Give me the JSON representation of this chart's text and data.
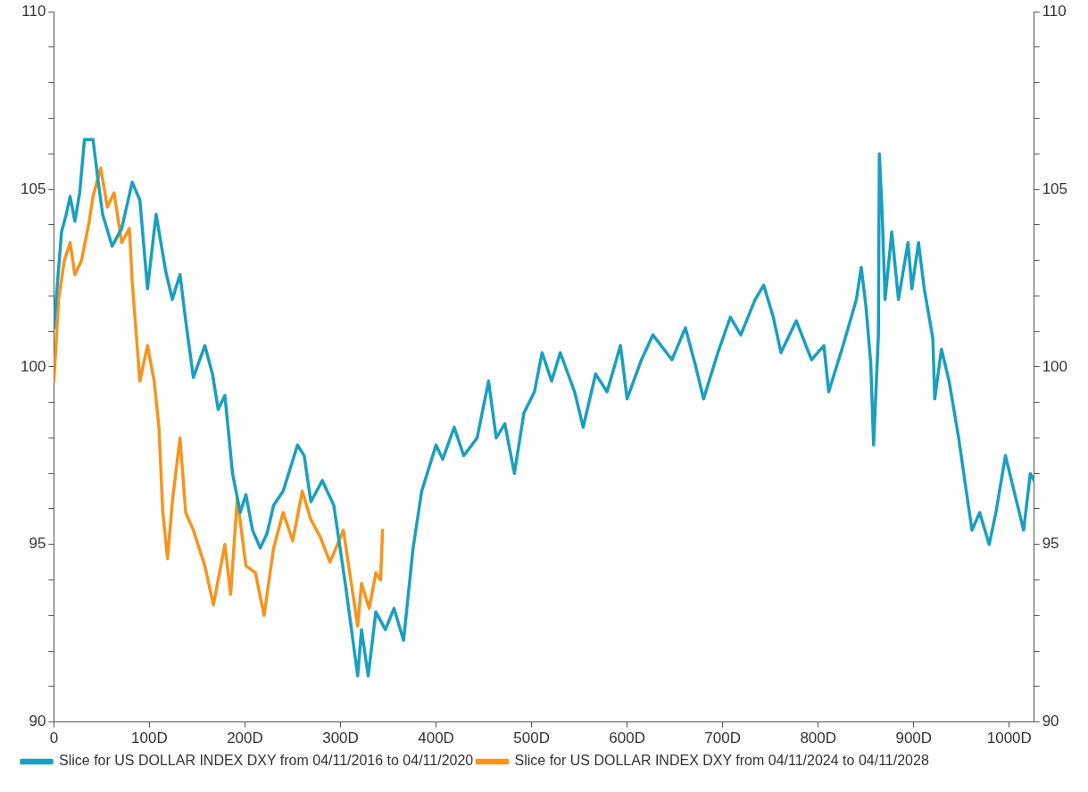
{
  "chart_data": {
    "type": "line",
    "xlim": [
      0,
      1026
    ],
    "xticks": [
      0,
      {
        "value": 100,
        "label": "100D"
      },
      {
        "value": 200,
        "label": "200D"
      },
      {
        "value": 300,
        "label": "300D"
      },
      {
        "value": 400,
        "label": "400D"
      },
      {
        "value": 500,
        "label": "500D"
      },
      {
        "value": 600,
        "label": "600D"
      },
      {
        "value": 700,
        "label": "700D"
      },
      {
        "value": 800,
        "label": "800D"
      },
      {
        "value": 900,
        "label": "900D"
      },
      {
        "value": 1000,
        "label": "1000D"
      }
    ],
    "ylim": [
      90,
      110
    ],
    "yticks": [
      90,
      {
        "value": 91,
        "label": null
      },
      {
        "value": 92,
        "label": null
      },
      {
        "value": 93,
        "label": null
      },
      {
        "value": 94,
        "label": null
      },
      95,
      {
        "value": 96,
        "label": null
      },
      {
        "value": 97,
        "label": null
      },
      {
        "value": 98,
        "label": null
      },
      {
        "value": 99,
        "label": null
      },
      100,
      {
        "value": 101,
        "label": null
      },
      {
        "value": 102,
        "label": null
      },
      {
        "value": 103,
        "label": null
      },
      {
        "value": 104,
        "label": null
      },
      105,
      {
        "value": 106,
        "label": null
      },
      {
        "value": 107,
        "label": null
      },
      {
        "value": 108,
        "label": null
      },
      {
        "value": 109,
        "label": null
      },
      110
    ],
    "y2lim": [
      90,
      110
    ],
    "y2ticks": [
      90,
      {
        "value": 91,
        "label": null
      },
      {
        "value": 92,
        "label": null
      },
      {
        "value": 93,
        "label": null
      },
      {
        "value": 94,
        "label": null
      },
      95,
      {
        "value": 96,
        "label": null
      },
      {
        "value": 97,
        "label": null
      },
      {
        "value": 98,
        "label": null
      },
      {
        "value": 99,
        "label": null
      },
      100,
      {
        "value": 101,
        "label": null
      },
      {
        "value": 102,
        "label": null
      },
      {
        "value": 103,
        "label": null
      },
      {
        "value": 104,
        "label": null
      },
      105,
      {
        "value": 106,
        "label": null
      },
      {
        "value": 107,
        "label": null
      },
      {
        "value": 108,
        "label": null
      },
      {
        "value": 109,
        "label": null
      },
      110
    ],
    "grid": false,
    "legend": "bottom left",
    "marker": "none",
    "line_style": "solid",
    "series": [
      {
        "name": "Slice for US DOLLAR INDEX DXY from 04/11/2016 to 04/11/2020",
        "color": "#1a9fc0",
        "x": [
          0,
          8,
          13,
          17,
          22,
          27,
          32,
          41,
          46,
          51,
          61,
          71,
          82,
          90,
          98,
          107,
          117,
          124,
          132,
          138,
          146,
          158,
          166,
          172,
          179,
          187,
          195,
          201,
          208,
          216,
          223,
          230,
          240,
          255,
          262,
          269,
          281,
          293,
          305,
          313,
          318,
          322,
          329,
          337,
          347,
          356,
          366,
          376,
          385,
          400,
          407,
          419,
          429,
          443,
          455,
          463,
          472,
          482,
          492,
          503,
          511,
          521,
          530,
          545,
          554,
          567,
          579,
          593,
          600,
          615,
          627,
          647,
          661,
          671,
          680,
          695,
          708,
          719,
          734,
          743,
          753,
          761,
          777,
          793,
          806,
          811,
          826,
          840,
          845,
          850,
          855,
          858,
          863,
          864,
          867,
          870,
          877,
          884,
          894,
          898,
          905,
          911,
          920,
          922,
          929,
          937,
          947,
          955,
          961,
          969,
          979,
          986,
          996,
          1005,
          1015,
          1022,
          1026
        ],
        "values": [
          101.1,
          103.8,
          104.3,
          104.8,
          104.1,
          104.9,
          106.4,
          106.4,
          105.3,
          104.3,
          103.4,
          103.9,
          105.2,
          104.7,
          102.2,
          104.3,
          102.7,
          101.9,
          102.6,
          101.3,
          99.7,
          100.6,
          99.8,
          98.8,
          99.2,
          97.0,
          95.9,
          96.4,
          95.4,
          94.9,
          95.3,
          96.1,
          96.5,
          97.8,
          97.5,
          96.2,
          96.8,
          96.1,
          93.9,
          92.3,
          91.3,
          92.6,
          91.3,
          93.1,
          92.6,
          93.2,
          92.3,
          94.9,
          96.5,
          97.8,
          97.4,
          98.3,
          97.5,
          98.0,
          99.6,
          98.0,
          98.4,
          97.0,
          98.7,
          99.3,
          100.4,
          99.6,
          100.4,
          99.3,
          98.3,
          99.8,
          99.3,
          100.6,
          99.1,
          100.2,
          100.9,
          100.2,
          101.1,
          100.1,
          99.1,
          100.4,
          101.4,
          100.9,
          101.9,
          102.3,
          101.4,
          100.4,
          101.3,
          100.2,
          100.6,
          99.3,
          100.6,
          101.9,
          102.8,
          101.7,
          100.1,
          97.8,
          100.9,
          106.0,
          104.3,
          101.9,
          103.8,
          101.9,
          103.5,
          102.2,
          103.5,
          102.2,
          100.8,
          99.1,
          100.5,
          99.6,
          98.0,
          96.5,
          95.4,
          95.9,
          95.0,
          95.9,
          97.5,
          96.5,
          95.4,
          97.0,
          96.8
        ]
      },
      {
        "name": "Slice for US DOLLAR INDEX DXY from 04/11/2024 to 04/11/2028",
        "color": "#f7941d",
        "x": [
          0,
          5,
          11,
          17,
          22,
          29,
          37,
          41,
          49,
          56,
          63,
          71,
          79,
          82,
          90,
          98,
          105,
          110,
          114,
          119,
          124,
          132,
          138,
          146,
          158,
          167,
          179,
          185,
          192,
          201,
          211,
          220,
          230,
          240,
          250,
          260,
          269,
          279,
          289,
          303,
          313,
          318,
          322,
          330,
          337,
          342,
          344
        ],
        "values": [
          99.6,
          101.9,
          103.0,
          103.5,
          102.6,
          103.0,
          104.1,
          104.8,
          105.6,
          104.5,
          104.9,
          103.5,
          103.9,
          102.4,
          99.6,
          100.6,
          99.6,
          98.3,
          95.9,
          94.6,
          96.2,
          98.0,
          95.9,
          95.4,
          94.4,
          93.3,
          95.0,
          93.6,
          96.3,
          94.4,
          94.2,
          93.0,
          94.9,
          95.9,
          95.1,
          96.5,
          95.7,
          95.2,
          94.5,
          95.4,
          93.6,
          92.7,
          93.9,
          93.2,
          94.2,
          94.0,
          95.4
        ]
      }
    ]
  }
}
